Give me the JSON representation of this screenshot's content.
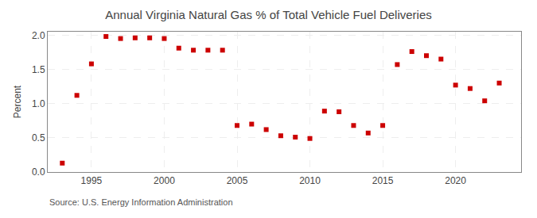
{
  "chart_data": {
    "type": "scatter",
    "title": "Annual Virginia Natural Gas % of Total Vehicle Fuel Deliveries",
    "ylabel": "Percent",
    "annotations": [
      "Source: U.S. Energy Information Administration"
    ],
    "x": [
      1993,
      1994,
      1995,
      1996,
      1997,
      1998,
      1999,
      2000,
      2001,
      2002,
      2003,
      2004,
      2005,
      2006,
      2007,
      2008,
      2009,
      2010,
      2011,
      2012,
      2013,
      2014,
      2015,
      2016,
      2017,
      2018,
      2019,
      2020,
      2021,
      2022,
      2023
    ],
    "values": [
      0.13,
      1.12,
      1.58,
      1.98,
      1.95,
      1.96,
      1.96,
      1.95,
      1.81,
      1.78,
      1.78,
      1.78,
      0.68,
      0.7,
      0.62,
      0.53,
      0.51,
      0.49,
      0.89,
      0.88,
      0.68,
      0.57,
      0.68,
      1.57,
      1.76,
      1.7,
      1.65,
      1.27,
      1.22,
      1.04,
      1.3
    ],
    "color": "#cc0000",
    "marker": "square",
    "xlim": [
      1992.0,
      2024.5
    ],
    "ylim": [
      0.0,
      2.05
    ],
    "xticks": [
      1995,
      2000,
      2005,
      2010,
      2015,
      2020
    ],
    "yticks": [
      {
        "value": 0,
        "label": "0.0"
      },
      0.5,
      {
        "value": 1,
        "label": "1.0"
      },
      1.5,
      {
        "value": 2,
        "label": "2.0"
      }
    ],
    "grid": true
  }
}
